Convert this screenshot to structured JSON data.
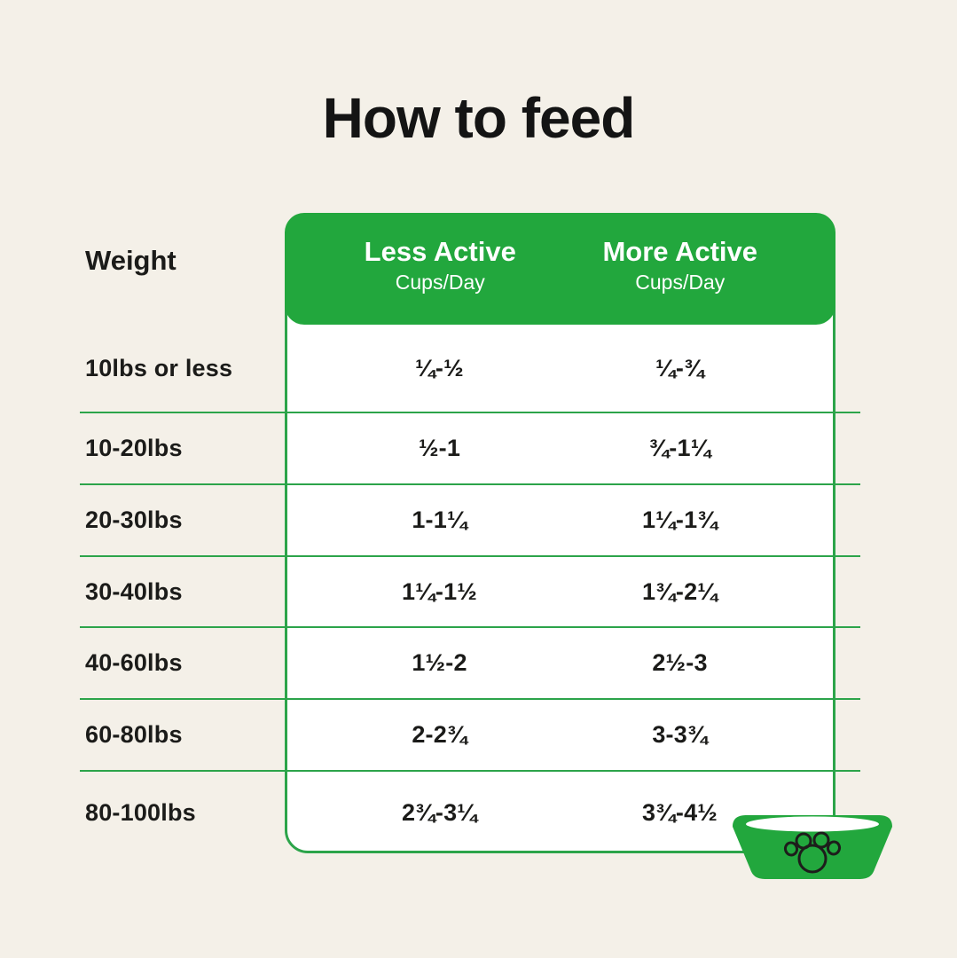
{
  "title": "How to feed",
  "colors": {
    "accent_green": "#22A73D",
    "line_green": "#2CA44A",
    "background": "#F4F0E8",
    "text": "#1B1B19",
    "table_background": "#FFFFFF"
  },
  "table": {
    "weight_header": "Weight",
    "columns": [
      {
        "label": "Less Active",
        "sublabel": "Cups/Day"
      },
      {
        "label": "More Active",
        "sublabel": "Cups/Day"
      }
    ],
    "rows": [
      {
        "weight": "10lbs or less",
        "less_active": "¼-½",
        "more_active": "¼-¾"
      },
      {
        "weight": "10-20lbs",
        "less_active": "½-1",
        "more_active": "¾-1¼"
      },
      {
        "weight": "20-30lbs",
        "less_active": "1-1¼",
        "more_active": "1¼-1¾"
      },
      {
        "weight": "30-40lbs",
        "less_active": "1¼-1½",
        "more_active": "1¾-2¼"
      },
      {
        "weight": "40-60lbs",
        "less_active": "1½-2",
        "more_active": "2½-3"
      },
      {
        "weight": "60-80lbs",
        "less_active": "2-2¾",
        "more_active": "3-3¾"
      },
      {
        "weight": "80-100lbs",
        "less_active": "2¾-3¼",
        "more_active": "3¾-4½"
      }
    ]
  },
  "icons": {
    "bowl": "dog-bowl-icon",
    "paw": "paw-print-icon"
  }
}
